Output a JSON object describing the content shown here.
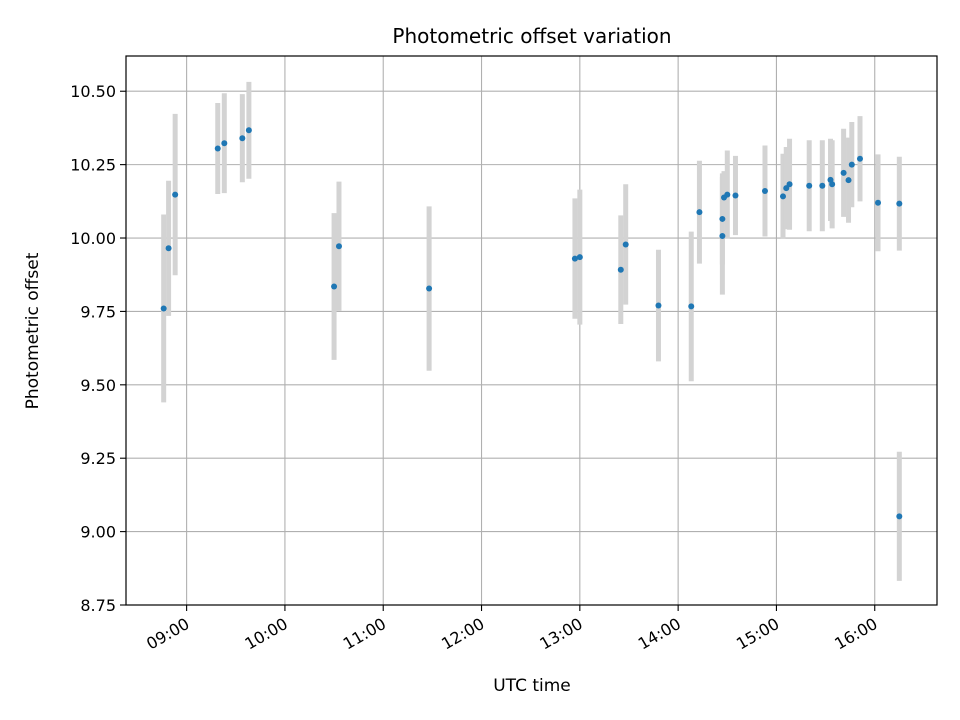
{
  "chart_data": {
    "type": "scatter",
    "title": "Photometric offset variation",
    "xlabel": "UTC time",
    "ylabel": "Photometric offset",
    "grid": true,
    "ylim": [
      8.75,
      10.62
    ],
    "yticks": [
      8.75,
      9.0,
      9.25,
      9.5,
      9.75,
      10.0,
      10.25,
      10.5
    ],
    "ytick_labels": [
      "8.75",
      "9.00",
      "9.25",
      "9.50",
      "9.75",
      "10.00",
      "10.25",
      "10.50"
    ],
    "xlim": [
      "08:23",
      "16:38"
    ],
    "xticks": [
      "09:00",
      "10:00",
      "11:00",
      "12:00",
      "13:00",
      "14:00",
      "15:00",
      "16:00"
    ],
    "marker_color": "#1f77b4",
    "errorbar_color": "#d3d3d3",
    "points": [
      {
        "x": "08:46",
        "y": 9.76,
        "err": 0.32
      },
      {
        "x": "08:49",
        "y": 9.965,
        "err": 0.23
      },
      {
        "x": "08:53",
        "y": 10.148,
        "err": 0.275
      },
      {
        "x": "09:19",
        "y": 10.305,
        "err": 0.155
      },
      {
        "x": "09:23",
        "y": 10.323,
        "err": 0.17
      },
      {
        "x": "09:34",
        "y": 10.34,
        "err": 0.15
      },
      {
        "x": "09:38",
        "y": 10.367,
        "err": 0.165
      },
      {
        "x": "10:30",
        "y": 9.835,
        "err": 0.25
      },
      {
        "x": "10:33",
        "y": 9.972,
        "err": 0.22
      },
      {
        "x": "11:28",
        "y": 9.828,
        "err": 0.28
      },
      {
        "x": "12:57",
        "y": 9.93,
        "err": 0.205
      },
      {
        "x": "13:00",
        "y": 9.935,
        "err": 0.23
      },
      {
        "x": "13:25",
        "y": 9.892,
        "err": 0.185
      },
      {
        "x": "13:28",
        "y": 9.978,
        "err": 0.205
      },
      {
        "x": "13:48",
        "y": 9.77,
        "err": 0.19
      },
      {
        "x": "14:08",
        "y": 9.767,
        "err": 0.255
      },
      {
        "x": "14:13",
        "y": 10.088,
        "err": 0.175
      },
      {
        "x": "14:27",
        "y": 10.007,
        "err": 0.2
      },
      {
        "x": "14:27",
        "y": 10.065,
        "err": 0.155
      },
      {
        "x": "14:28",
        "y": 10.138,
        "err": 0.09
      },
      {
        "x": "14:30",
        "y": 10.148,
        "err": 0.15
      },
      {
        "x": "14:35",
        "y": 10.145,
        "err": 0.135
      },
      {
        "x": "14:53",
        "y": 10.16,
        "err": 0.155
      },
      {
        "x": "15:04",
        "y": 10.142,
        "err": 0.145
      },
      {
        "x": "15:06",
        "y": 10.17,
        "err": 0.14
      },
      {
        "x": "15:08",
        "y": 10.183,
        "err": 0.155
      },
      {
        "x": "15:20",
        "y": 10.178,
        "err": 0.155
      },
      {
        "x": "15:28",
        "y": 10.178,
        "err": 0.155
      },
      {
        "x": "15:33",
        "y": 10.198,
        "err": 0.14
      },
      {
        "x": "15:34",
        "y": 10.183,
        "err": 0.15
      },
      {
        "x": "15:41",
        "y": 10.222,
        "err": 0.15
      },
      {
        "x": "15:44",
        "y": 10.197,
        "err": 0.145
      },
      {
        "x": "15:46",
        "y": 10.25,
        "err": 0.145
      },
      {
        "x": "15:51",
        "y": 10.27,
        "err": 0.145
      },
      {
        "x": "16:02",
        "y": 10.12,
        "err": 0.165
      },
      {
        "x": "16:15",
        "y": 10.117,
        "err": 0.16
      },
      {
        "x": "16:15",
        "y": 9.052,
        "err": 0.22
      }
    ]
  }
}
